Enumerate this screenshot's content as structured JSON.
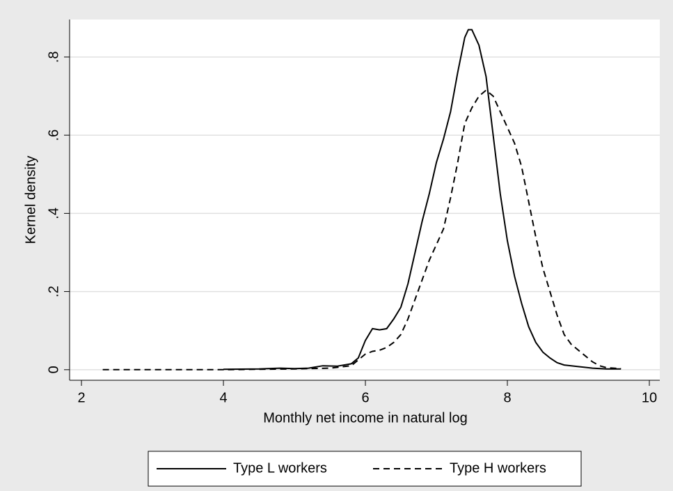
{
  "chart_data": {
    "type": "line",
    "xlabel": "Monthly net income in natural log",
    "ylabel": "Kernel density",
    "xlim": [
      1.833,
      10.147
    ],
    "xticks": [
      2,
      4,
      6,
      8,
      10
    ],
    "ylim": [
      -0.027,
      0.896
    ],
    "yticks": [
      0,
      {
        "value": 0.2,
        "label": ".2"
      },
      {
        "value": 0.4,
        "label": ".4"
      },
      {
        "value": 0.6,
        "label": ".6"
      },
      {
        "value": 0.8,
        "label": ".8"
      }
    ],
    "grid": true,
    "legend": "bottom",
    "series": [
      {
        "name": "Type L workers",
        "color": "#000000",
        "dash": "solid",
        "x": [
          4.0,
          4.5,
          4.8,
          5.0,
          5.2,
          5.4,
          5.6,
          5.8,
          5.9,
          6.0,
          6.1,
          6.2,
          6.3,
          6.4,
          6.5,
          6.6,
          6.7,
          6.8,
          6.9,
          7.0,
          7.1,
          7.2,
          7.3,
          7.4,
          7.45,
          7.5,
          7.6,
          7.7,
          7.8,
          7.9,
          8.0,
          8.1,
          8.2,
          8.3,
          8.4,
          8.5,
          8.6,
          8.7,
          8.8,
          9.0,
          9.2,
          9.4,
          9.6
        ],
        "values": [
          0.001,
          0.002,
          0.004,
          0.003,
          0.004,
          0.01,
          0.009,
          0.015,
          0.03,
          0.075,
          0.105,
          0.102,
          0.105,
          0.13,
          0.16,
          0.22,
          0.3,
          0.38,
          0.45,
          0.53,
          0.59,
          0.66,
          0.76,
          0.85,
          0.87,
          0.87,
          0.83,
          0.75,
          0.6,
          0.45,
          0.33,
          0.24,
          0.17,
          0.11,
          0.07,
          0.045,
          0.03,
          0.018,
          0.012,
          0.008,
          0.004,
          0.002,
          0.002
        ]
      },
      {
        "name": "Type H workers",
        "color": "#000000",
        "dash": "dashed",
        "x": [
          2.3,
          3.0,
          4.0,
          5.0,
          5.5,
          5.8,
          5.9,
          6.0,
          6.1,
          6.2,
          6.3,
          6.4,
          6.5,
          6.6,
          6.7,
          6.8,
          6.9,
          7.0,
          7.1,
          7.2,
          7.3,
          7.4,
          7.5,
          7.6,
          7.7,
          7.8,
          7.9,
          8.0,
          8.1,
          8.2,
          8.3,
          8.4,
          8.5,
          8.6,
          8.7,
          8.8,
          8.9,
          9.0,
          9.1,
          9.2,
          9.3,
          9.4,
          9.6
        ],
        "values": [
          0,
          0,
          0,
          0.002,
          0.004,
          0.01,
          0.025,
          0.04,
          0.047,
          0.05,
          0.057,
          0.07,
          0.09,
          0.13,
          0.18,
          0.23,
          0.28,
          0.32,
          0.36,
          0.44,
          0.53,
          0.63,
          0.67,
          0.7,
          0.715,
          0.7,
          0.66,
          0.62,
          0.58,
          0.52,
          0.43,
          0.34,
          0.26,
          0.2,
          0.14,
          0.09,
          0.065,
          0.05,
          0.035,
          0.02,
          0.01,
          0.005,
          0.003
        ]
      }
    ]
  }
}
